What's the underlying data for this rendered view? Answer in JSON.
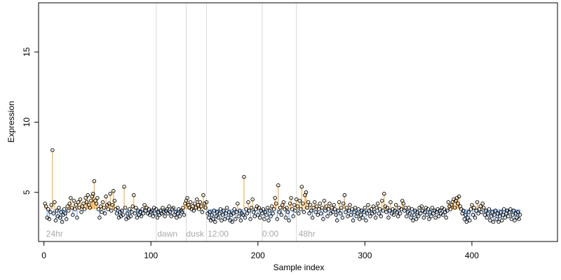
{
  "chart_data": {
    "type": "scatter",
    "title": "",
    "xlabel": "Sample index",
    "ylabel": "Expression",
    "xlim": [
      -5,
      480
    ],
    "ylim": [
      1.5,
      18.5
    ],
    "x_ticks": [
      0,
      100,
      200,
      300,
      400
    ],
    "y_ticks": [
      5,
      10,
      15
    ],
    "baseline": 3.8,
    "colors": {
      "above": "#f0a030",
      "below": "#6fa0e0",
      "divider": "#d8d8d8",
      "point_stroke": "#000000"
    },
    "dividers": [
      105,
      133,
      152,
      204,
      236
    ],
    "condition_labels": [
      {
        "label": "24hr",
        "x": 2
      },
      {
        "label": "dawn",
        "x": 106
      },
      {
        "label": "dusk",
        "x": 133
      },
      {
        "label": "12:00",
        "x": 153
      },
      {
        "label": "0:00",
        "x": 204
      },
      {
        "label": "48hr",
        "x": 238
      }
    ],
    "series": [
      {
        "values": [
          4.2,
          4.0,
          3.2,
          3.8,
          3.1,
          3.6,
          4.1,
          8.0,
          3.5,
          4.3,
          3.0,
          3.7,
          3.3,
          3.9,
          3.2,
          3.6,
          2.9,
          3.4,
          3.8,
          3.5,
          3.1,
          4.0,
          3.7,
          4.2,
          4.6,
          3.9,
          3.4,
          4.4,
          3.8,
          4.1,
          3.2,
          4.3,
          3.9,
          4.5,
          3.6,
          4.0,
          4.2,
          3.8,
          4.6,
          4.3,
          4.8,
          4.1,
          3.9,
          4.4,
          4.7,
          4.9,
          5.8,
          4.4,
          4.2,
          4.6,
          3.8,
          3.2,
          4.0,
          3.6,
          4.3,
          3.9,
          3.5,
          4.7,
          4.1,
          3.8,
          4.2,
          4.9,
          3.7,
          4.1,
          5.1,
          4.4,
          3.8,
          3.5,
          3.9,
          3.2,
          3.6,
          3.3,
          3.7,
          3.4,
          5.4,
          3.9,
          3.1,
          3.5,
          3.2,
          3.8,
          3.3,
          3.6,
          4.0,
          4.8,
          3.5,
          3.9,
          3.2,
          3.7,
          3.4,
          3.6,
          3.3,
          3.8,
          3.5,
          4.1,
          3.7,
          3.9,
          3.5,
          3.8,
          3.4,
          3.6,
          3.7,
          3.3,
          3.9,
          3.5,
          3.8,
          3.2,
          3.6,
          3.4,
          3.7,
          3.5,
          3.9,
          3.6,
          3.3,
          3.7,
          3.8,
          3.5,
          4.0,
          3.6,
          3.3,
          3.8,
          3.9,
          3.4,
          3.6,
          3.2,
          3.5,
          3.8,
          3.3,
          3.7,
          3.6,
          3.9,
          3.4,
          4.2,
          4.4,
          4.6,
          4.1,
          3.9,
          4.3,
          3.8,
          4.0,
          3.7,
          4.2,
          3.9,
          4.5,
          4.1,
          3.8,
          4.3,
          4.0,
          3.6,
          4.8,
          4.2,
          3.9,
          4.3,
          3.5,
          3.2,
          3.6,
          3.0,
          3.4,
          3.1,
          3.7,
          2.9,
          3.3,
          3.6,
          3.2,
          3.5,
          3.8,
          3.0,
          3.4,
          3.7,
          3.1,
          3.5,
          3.9,
          3.2,
          3.6,
          3.0,
          3.4,
          2.9,
          3.5,
          3.8,
          3.1,
          3.6,
          4.2,
          3.3,
          3.7,
          3.0,
          3.5,
          3.4,
          6.1,
          3.2,
          3.8,
          3.5,
          4.3,
          3.7,
          3.1,
          3.9,
          4.5,
          3.6,
          3.3,
          3.8,
          4.0,
          3.4,
          3.9,
          3.2,
          3.7,
          3.5,
          3.8,
          3.1,
          3.6,
          3.4,
          3.9,
          3.0,
          3.7,
          3.3,
          4.0,
          3.5,
          3.8,
          4.6,
          4.2,
          3.1,
          5.5,
          3.6,
          3.9,
          3.4,
          4.1,
          4.3,
          3.8,
          3.2,
          3.9,
          3.6,
          3.0,
          4.2,
          4.6,
          3.8,
          3.3,
          4.1,
          3.7,
          4.5,
          4.0,
          3.5,
          4.4,
          3.8,
          5.4,
          4.2,
          3.6,
          4.8,
          5.0,
          3.9,
          4.3,
          3.5,
          4.1,
          3.7,
          3.2,
          3.9,
          4.3,
          3.6,
          4.0,
          3.4,
          3.8,
          4.2,
          3.5,
          3.9,
          3.1,
          4.4,
          3.7,
          4.0,
          3.3,
          3.8,
          4.2,
          3.5,
          3.9,
          3.6,
          4.1,
          3.8,
          3.4,
          3.0,
          3.7,
          4.3,
          3.5,
          3.9,
          3.2,
          4.2,
          4.8,
          3.6,
          3.9,
          3.3,
          3.7,
          4.1,
          3.4,
          3.8,
          3.0,
          3.6,
          3.9,
          3.3,
          3.5,
          3.8,
          3.1,
          3.4,
          3.7,
          3.2,
          3.6,
          3.9,
          3.0,
          3.5,
          4.1,
          3.7,
          3.3,
          3.8,
          3.5,
          4.0,
          3.6,
          3.2,
          3.9,
          4.2,
          3.5,
          3.8,
          3.3,
          4.4,
          3.7,
          4.9,
          4.0,
          3.6,
          3.9,
          3.2,
          3.7,
          4.3,
          3.5,
          3.8,
          3.4,
          3.7,
          4.1,
          3.6,
          3.3,
          3.9,
          3.5,
          3.8,
          4.4,
          4.2,
          3.7,
          3.9,
          3.3,
          3.6,
          3.9,
          3.5,
          3.2,
          3.8,
          3.0,
          3.4,
          3.7,
          3.1,
          3.6,
          3.3,
          3.9,
          3.5,
          4.0,
          3.7,
          3.2,
          3.6,
          3.9,
          3.4,
          3.8,
          3.1,
          3.6,
          3.3,
          3.9,
          3.5,
          3.7,
          3.2,
          3.6,
          3.8,
          3.3,
          3.7,
          3.5,
          3.9,
          3.4,
          3.8,
          3.6,
          3.2,
          3.7,
          4.3,
          4.0,
          3.8,
          4.1,
          4.3,
          4.5,
          3.9,
          4.4,
          4.6,
          4.2,
          4.7,
          4.0,
          3.8,
          3.5,
          3.7,
          3.1,
          3.4,
          2.9,
          3.2,
          3.6,
          3.0,
          3.8,
          4.1,
          3.4,
          3.9,
          3.2,
          3.7,
          4.3,
          3.5,
          3.8,
          4.0,
          3.6,
          4.2,
          3.9,
          3.4,
          3.7,
          3.2,
          3.5,
          3.8,
          3.0,
          3.3,
          3.6,
          2.9,
          3.4,
          3.7,
          3.1,
          3.5,
          2.9,
          3.3,
          3.6,
          3.0,
          3.4,
          3.8,
          3.2,
          3.5,
          3.7,
          3.3,
          3.6,
          3.8,
          3.1,
          3.4,
          3.7,
          3.0,
          3.5,
          3.2,
          3.6,
          3.1,
          3.4
        ]
      }
    ]
  }
}
